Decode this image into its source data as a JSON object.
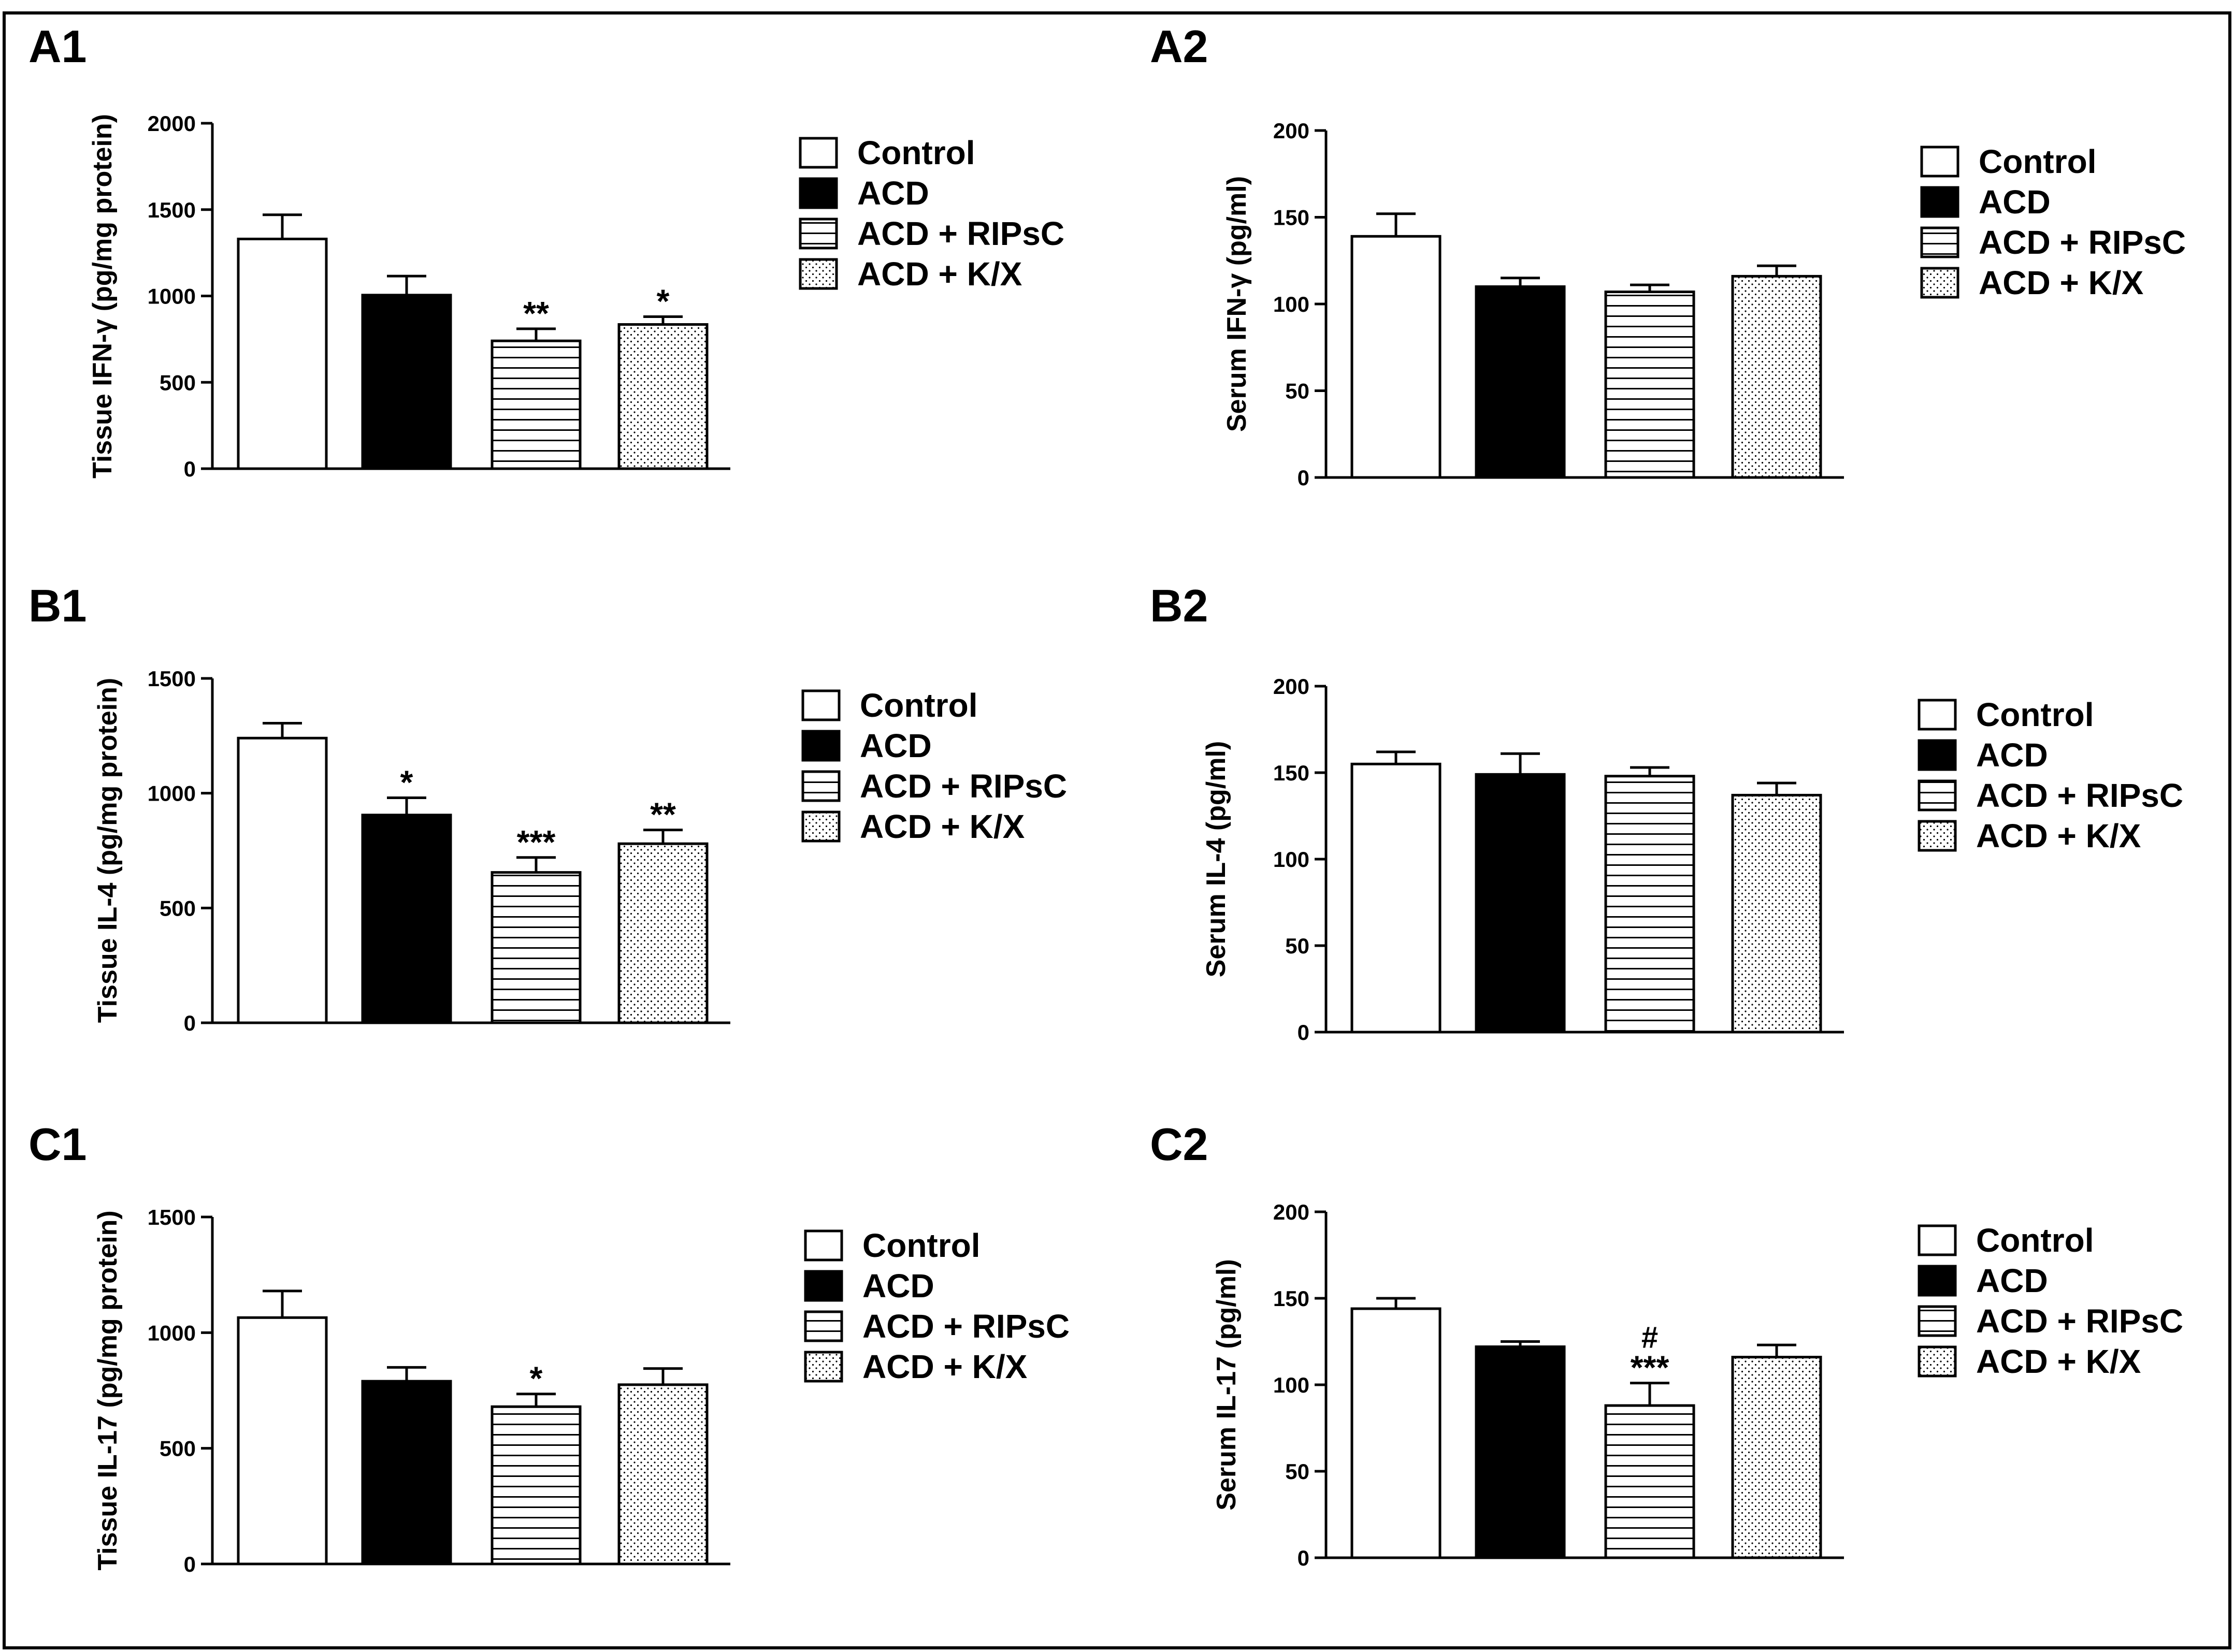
{
  "figure": {
    "legend": [
      "Control",
      "ACD",
      "ACD + RIPsC",
      "ACD + K/X"
    ],
    "legend_patterns": [
      "white",
      "black",
      "hlines",
      "dots"
    ],
    "colors": {
      "fill_dark": "#000000",
      "background": "#ffffff",
      "stroke": "#000000"
    }
  },
  "chart_data": [
    {
      "id": "A1",
      "panel_label": "A1",
      "type": "bar",
      "ylabel": "Tissue IFN-γ (pg/mg protein)",
      "categories": [
        "Control",
        "ACD",
        "ACD + RIPsC",
        "ACD + K/X"
      ],
      "values": [
        1330,
        1005,
        740,
        835
      ],
      "errors": [
        140,
        110,
        70,
        45
      ],
      "annotations": [
        "",
        "",
        "**",
        "*"
      ],
      "ylim": [
        0,
        2000
      ],
      "yticks": [
        0,
        500,
        1000,
        1500,
        2000
      ]
    },
    {
      "id": "A2",
      "panel_label": "A2",
      "type": "bar",
      "ylabel": "Serum IFN-γ  (pg/ml)",
      "categories": [
        "Control",
        "ACD",
        "ACD + RIPsC",
        "ACD + K/X"
      ],
      "values": [
        139,
        110,
        107,
        116
      ],
      "errors": [
        13,
        5,
        4,
        6
      ],
      "annotations": [
        "",
        "",
        "",
        ""
      ],
      "ylim": [
        0,
        200
      ],
      "yticks": [
        0,
        50,
        100,
        150,
        200
      ]
    },
    {
      "id": "B1",
      "panel_label": "B1",
      "type": "bar",
      "ylabel": "Tissue IL-4 (pg/mg protein)",
      "categories": [
        "Control",
        "ACD",
        "ACD + RIPsC",
        "ACD + K/X"
      ],
      "values": [
        1240,
        905,
        655,
        780
      ],
      "errors": [
        65,
        75,
        65,
        60
      ],
      "annotations": [
        "",
        "*",
        "***",
        "**"
      ],
      "ylim": [
        0,
        1500
      ],
      "yticks": [
        0,
        500,
        1000,
        1500
      ]
    },
    {
      "id": "B2",
      "panel_label": "B2",
      "type": "bar",
      "ylabel": "Serum IL-4  (pg/ml)",
      "categories": [
        "Control",
        "ACD",
        "ACD + RIPsC",
        "ACD + K/X"
      ],
      "values": [
        155,
        149,
        148,
        137
      ],
      "errors": [
        7,
        12,
        5,
        7
      ],
      "annotations": [
        "",
        "",
        "",
        ""
      ],
      "ylim": [
        0,
        200
      ],
      "yticks": [
        0,
        50,
        100,
        150,
        200
      ]
    },
    {
      "id": "C1",
      "panel_label": "C1",
      "type": "bar",
      "ylabel": "Tissue IL-17 (pg/mg protein)",
      "categories": [
        "Control",
        "ACD",
        "ACD + RIPsC",
        "ACD + K/X"
      ],
      "values": [
        1065,
        790,
        680,
        775
      ],
      "errors": [
        115,
        60,
        55,
        70
      ],
      "annotations": [
        "",
        "",
        "*",
        ""
      ],
      "ylim": [
        0,
        1500
      ],
      "yticks": [
        0,
        500,
        1000,
        1500
      ]
    },
    {
      "id": "C2",
      "panel_label": "C2",
      "type": "bar",
      "ylabel": "Serum IL-17  (pg/ml)",
      "categories": [
        "Control",
        "ACD",
        "ACD + RIPsC",
        "ACD + K/X"
      ],
      "values": [
        144,
        122,
        88,
        116
      ],
      "errors": [
        6,
        3,
        13,
        7
      ],
      "annotations": [
        "",
        "",
        "***",
        ""
      ],
      "annotations_top": [
        "",
        "",
        "#",
        ""
      ],
      "ylim": [
        0,
        200
      ],
      "yticks": [
        0,
        50,
        100,
        150,
        200
      ]
    }
  ]
}
